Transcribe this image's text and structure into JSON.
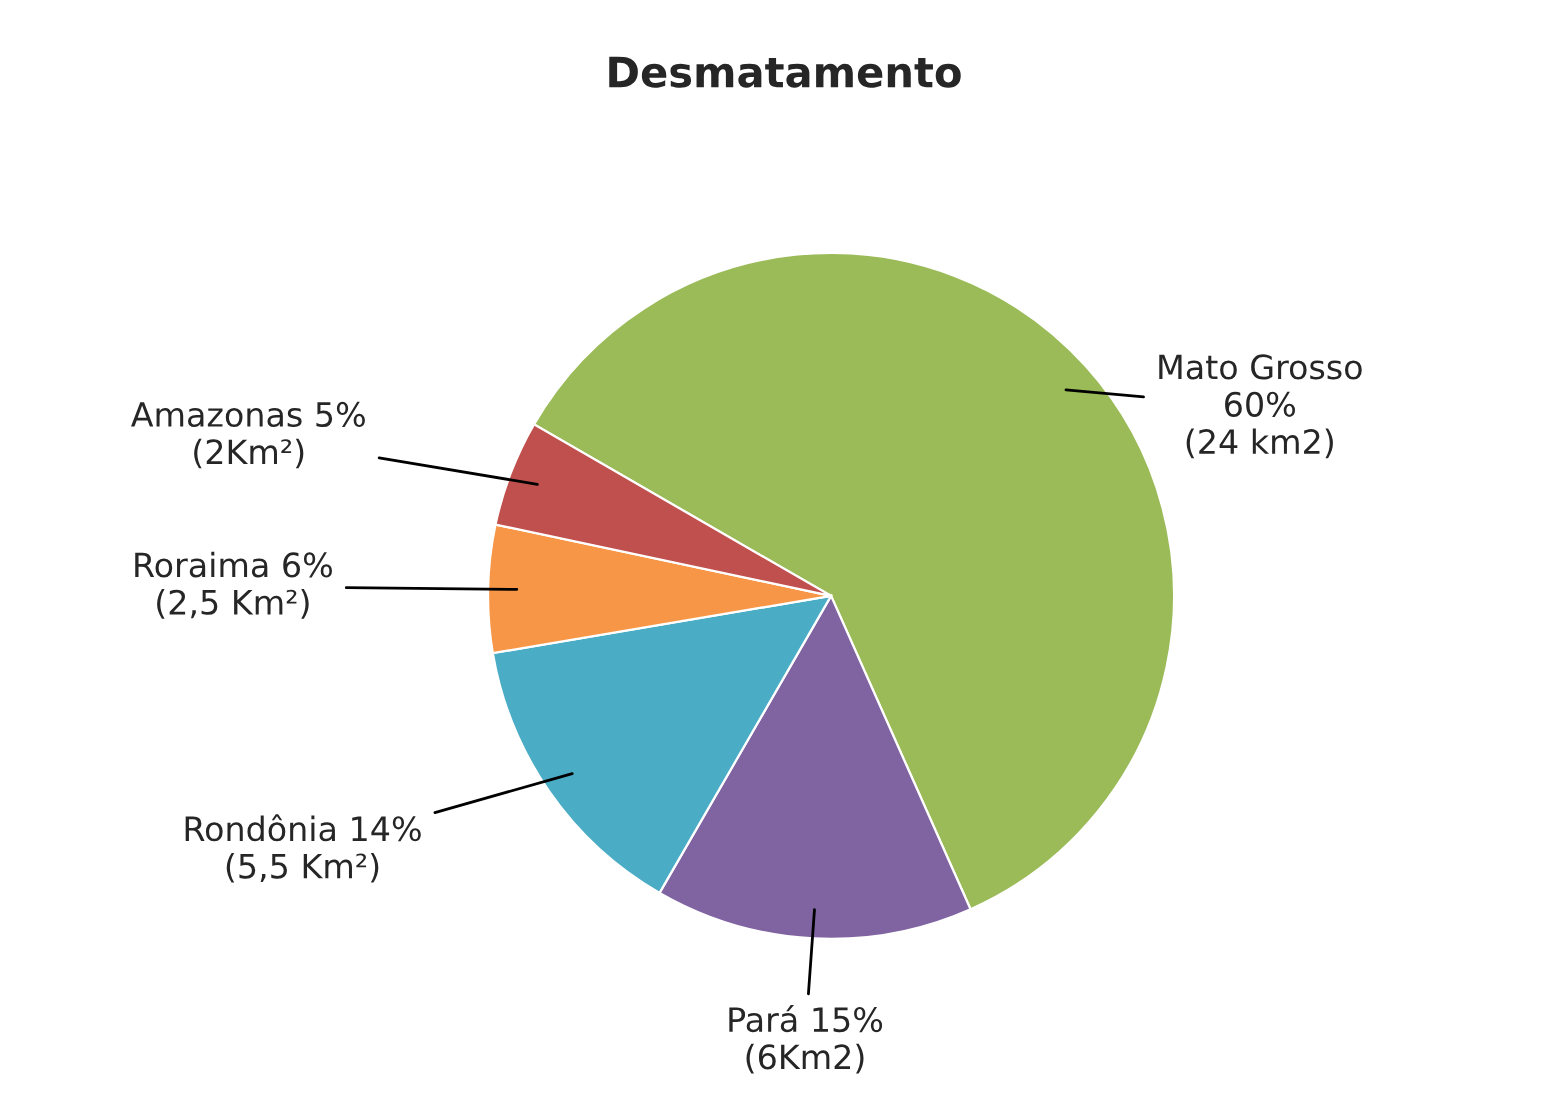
{
  "chart_data": {
    "type": "pie",
    "title": "Desmatamento",
    "categories": [
      "Mato Grosso",
      "Pará",
      "Rondônia",
      "Roraima",
      "Amazonas"
    ],
    "values": [
      60,
      15,
      14,
      6,
      5
    ],
    "value_labels": [
      "60%\n(24 km2)",
      "15%\n(6Km2)",
      "14%\n(5,5 Km²)",
      "6%\n(2,5 Km²)",
      "5%\n(2Km²)"
    ],
    "colors": [
      "#9bbb59",
      "#8064a2",
      "#4bacc6",
      "#f79646",
      "#c0504d"
    ],
    "legend": false
  }
}
